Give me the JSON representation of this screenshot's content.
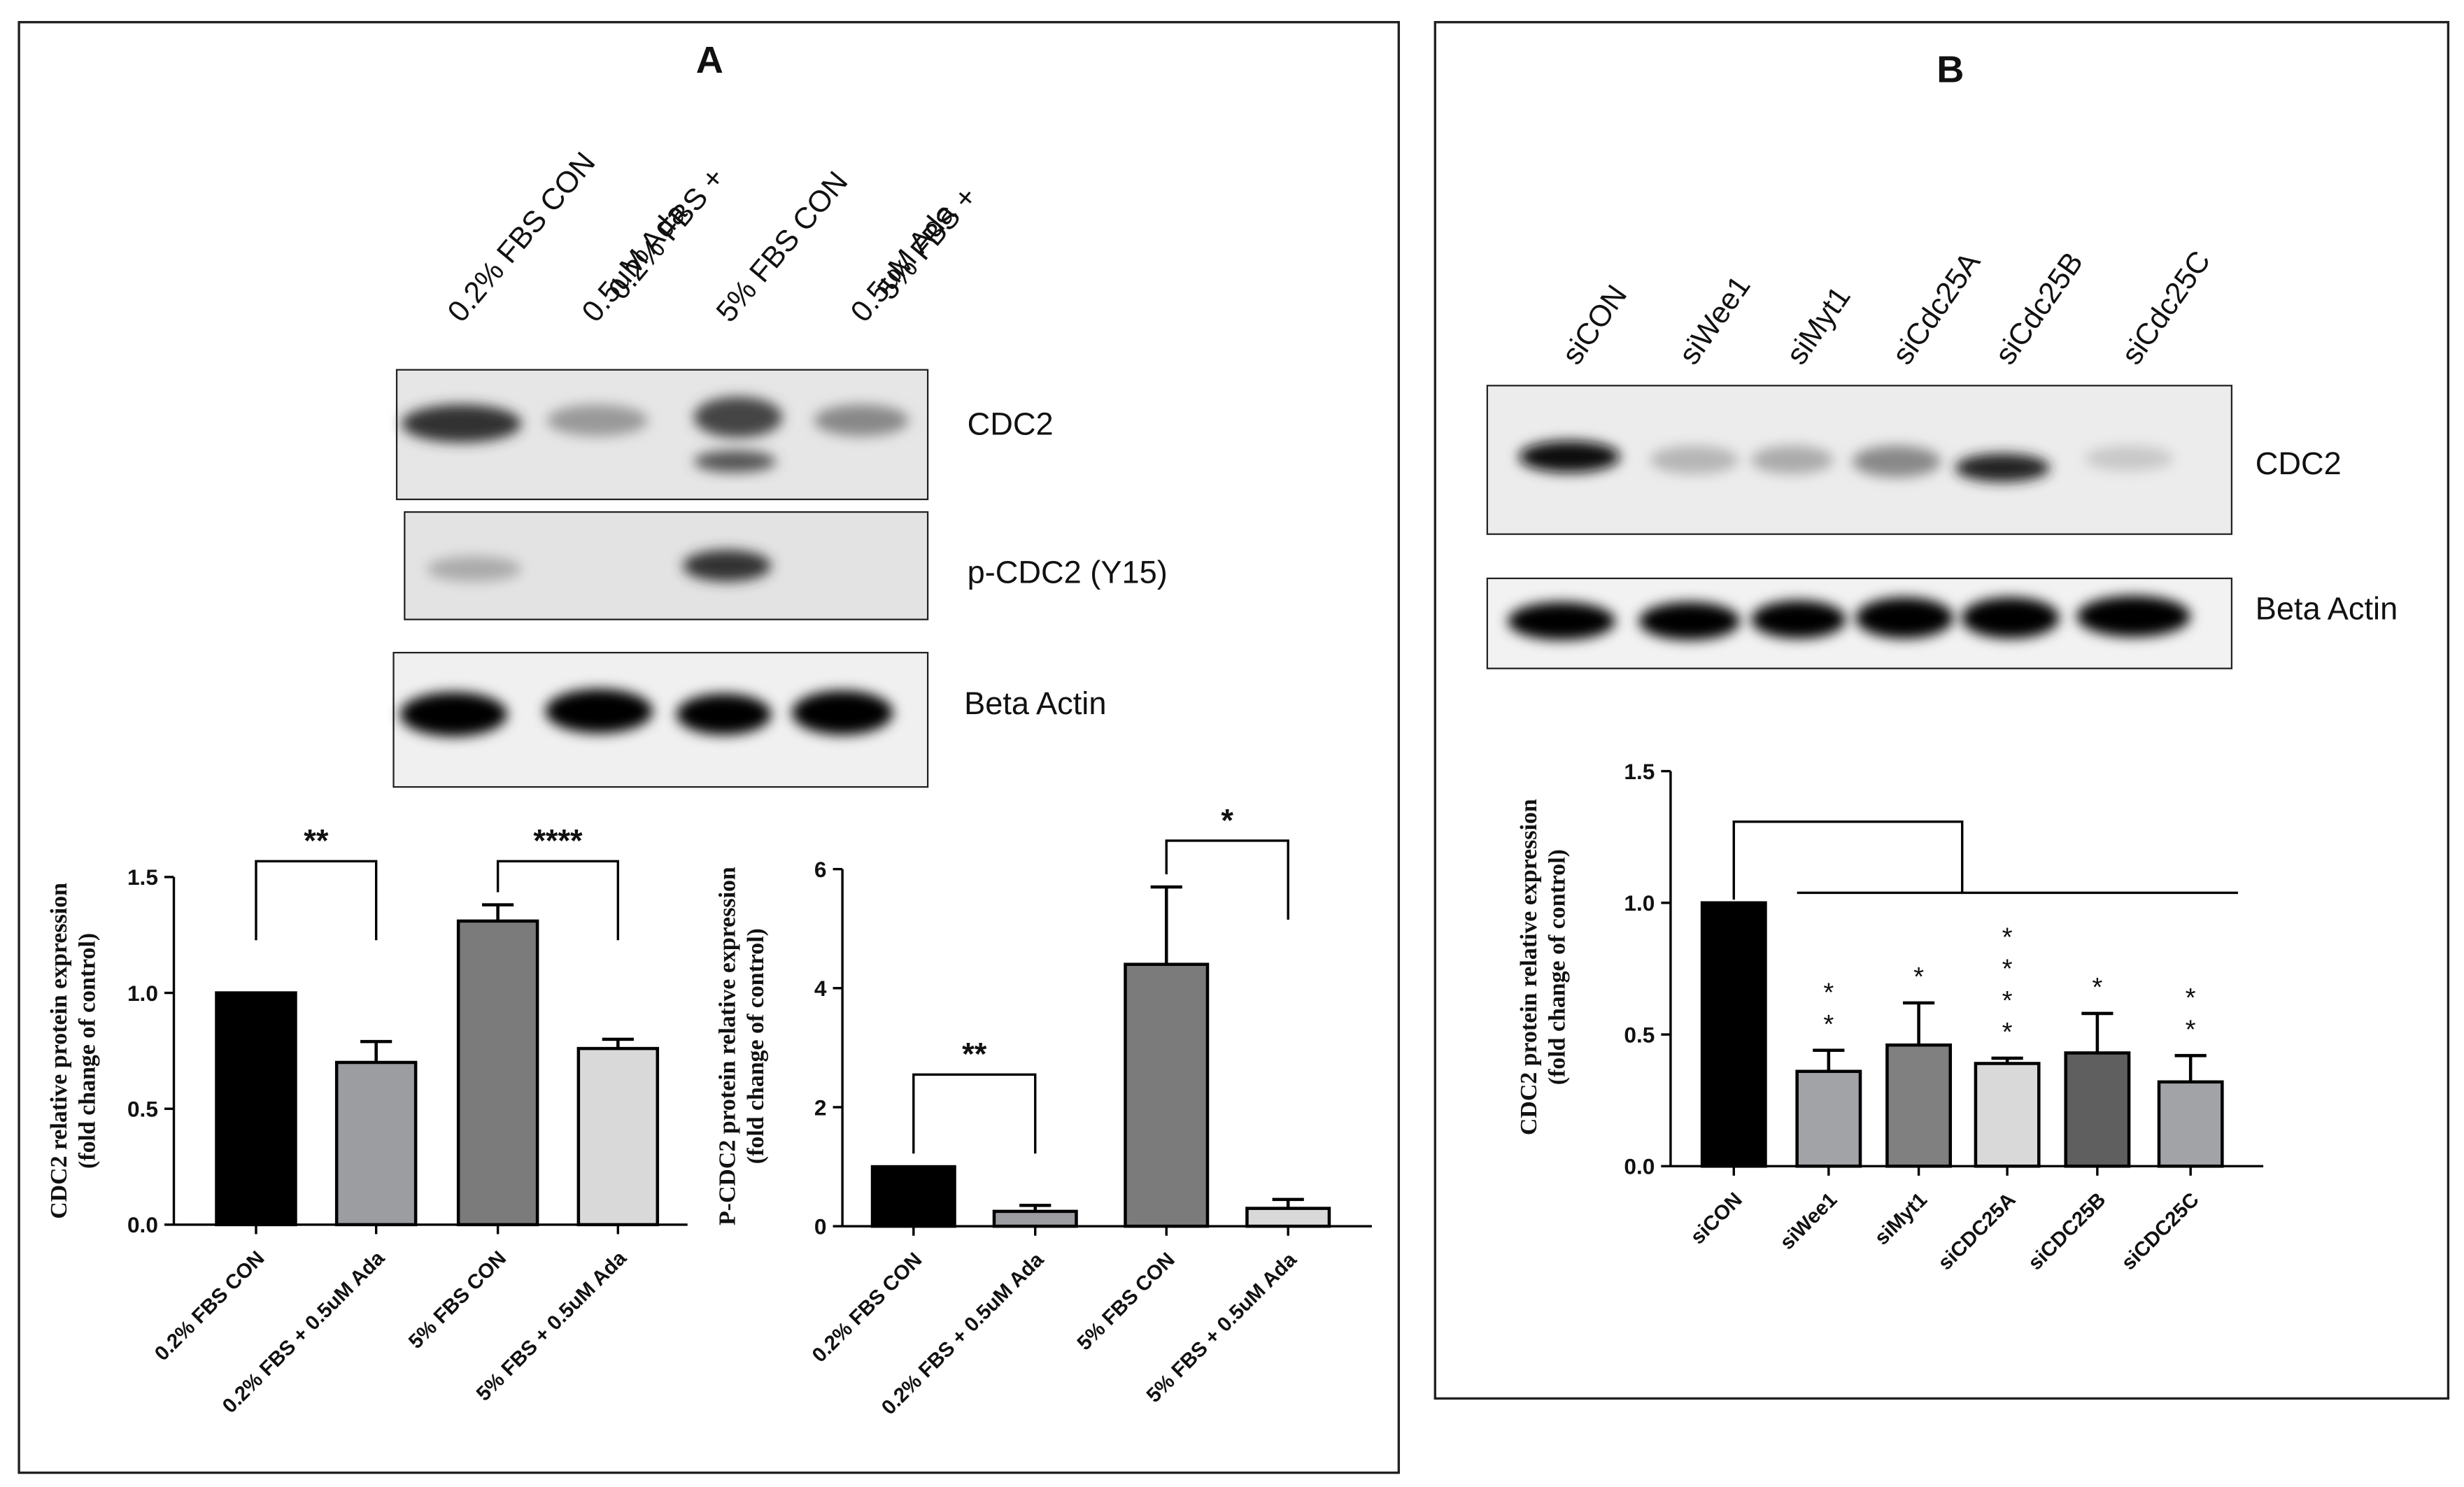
{
  "panel_labels": [
    "A",
    "B"
  ],
  "blots": [
    {
      "lanes": [
        [
          "0.2% FBS CON"
        ],
        [
          "0.2% FBS +",
          "0.5uM Ada"
        ],
        [
          "5% FBS CON"
        ],
        [
          "5% FBS +",
          "0.5uM Ada"
        ]
      ],
      "bands": [
        "CDC2",
        "p-CDC2 (Y15)",
        "Beta Actin"
      ]
    },
    {
      "lanes": [
        [
          "siCON"
        ],
        [
          "siWee1"
        ],
        [
          "siMyt1"
        ],
        [
          "siCdc25A"
        ],
        [
          "siCdc25B"
        ],
        [
          "siCdc25C"
        ]
      ],
      "bands": [
        "CDC2",
        "Beta Actin"
      ]
    }
  ],
  "chart_data": [
    {
      "type": "bar",
      "ylabel": [
        "CDC2 relative protein expression",
        "(fold change of control)"
      ],
      "categories": [
        "0.2% FBS CON",
        "0.2% FBS + 0.5uM Ada",
        "5% FBS CON",
        "5% FBS + 0.5uM Ada"
      ],
      "values": [
        1.0,
        0.7,
        1.31,
        0.76
      ],
      "errors": [
        0,
        0.09,
        0.07,
        0.04
      ],
      "colors": [
        "#000000",
        "#9b9da1",
        "#7b7b7b",
        "#d9d9d9"
      ],
      "ylim": [
        0,
        1.5
      ],
      "yticks": [
        {
          "value": 0,
          "label": "0.0"
        },
        0.5,
        {
          "value": 1,
          "label": "1.0"
        },
        1.5
      ],
      "annotations": [
        "**",
        "****"
      ]
    },
    {
      "type": "bar",
      "ylabel": [
        "P-CDC2 protein relative expression",
        "(fold change of control)"
      ],
      "categories": [
        "0.2% FBS CON",
        "0.2% FBS + 0.5uM Ada",
        "5% FBS CON",
        "5% FBS + 0.5uM Ada"
      ],
      "values": [
        1.0,
        0.25,
        4.4,
        0.3
      ],
      "errors": [
        0,
        0.1,
        1.3,
        0.15
      ],
      "colors": [
        "#000000",
        "#9b9da1",
        "#7b7b7b",
        "#d9d9d9"
      ],
      "ylim": [
        0,
        6
      ],
      "yticks": [
        0,
        2,
        4,
        6
      ],
      "annotations": [
        "**",
        "*"
      ]
    },
    {
      "type": "bar",
      "ylabel": [
        "CDC2 protein relative expression",
        "(fold change of control)"
      ],
      "categories": [
        "siCON",
        "siWee1",
        "siMyt1",
        "siCDC25A",
        "siCDC25B",
        "siCDC25C"
      ],
      "values": [
        1.0,
        0.36,
        0.46,
        0.39,
        0.43,
        0.32
      ],
      "errors": [
        0,
        0.08,
        0.16,
        0.02,
        0.15,
        0.1
      ],
      "colors": [
        "#000000",
        "#a1a3a7",
        "#808080",
        "#d9d9d9",
        "#5f5f5f",
        "#a1a3a7"
      ],
      "ylim": [
        0,
        1.5
      ],
      "yticks": [
        {
          "value": 0,
          "label": "0.0"
        },
        0.5,
        {
          "value": 1,
          "label": "1.0"
        },
        1.5
      ],
      "bar_labels": [
        null,
        "**",
        "*",
        "****",
        "*",
        "**"
      ]
    }
  ]
}
